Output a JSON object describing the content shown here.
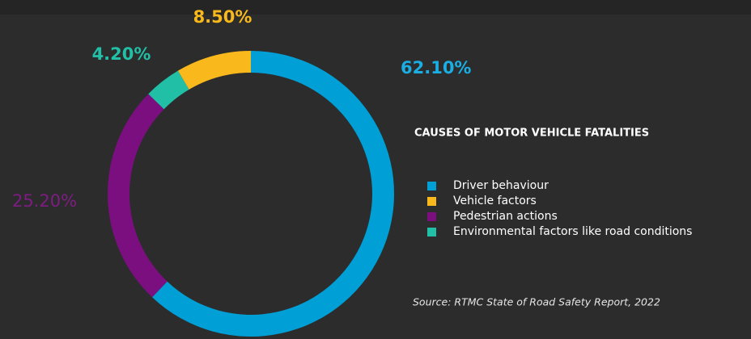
{
  "chart_data": {
    "type": "donut",
    "title": "CAUSES OF MOTOR VEHICLE FATALITIES",
    "source": "Source: RTMC State of Road Safety Report, 2022",
    "categories": [
      "Driver behaviour",
      "Vehicle factors",
      "Pedestrian actions",
      "Environmental factors like road conditions"
    ],
    "values": [
      62.1,
      8.5,
      25.2,
      4.2
    ],
    "value_labels": [
      "62.10%",
      "8.50%",
      "25.20%",
      "4.20%"
    ],
    "colors": [
      "#009fd6",
      "#f9b81b",
      "#7b0f80",
      "#22bfa7"
    ]
  }
}
